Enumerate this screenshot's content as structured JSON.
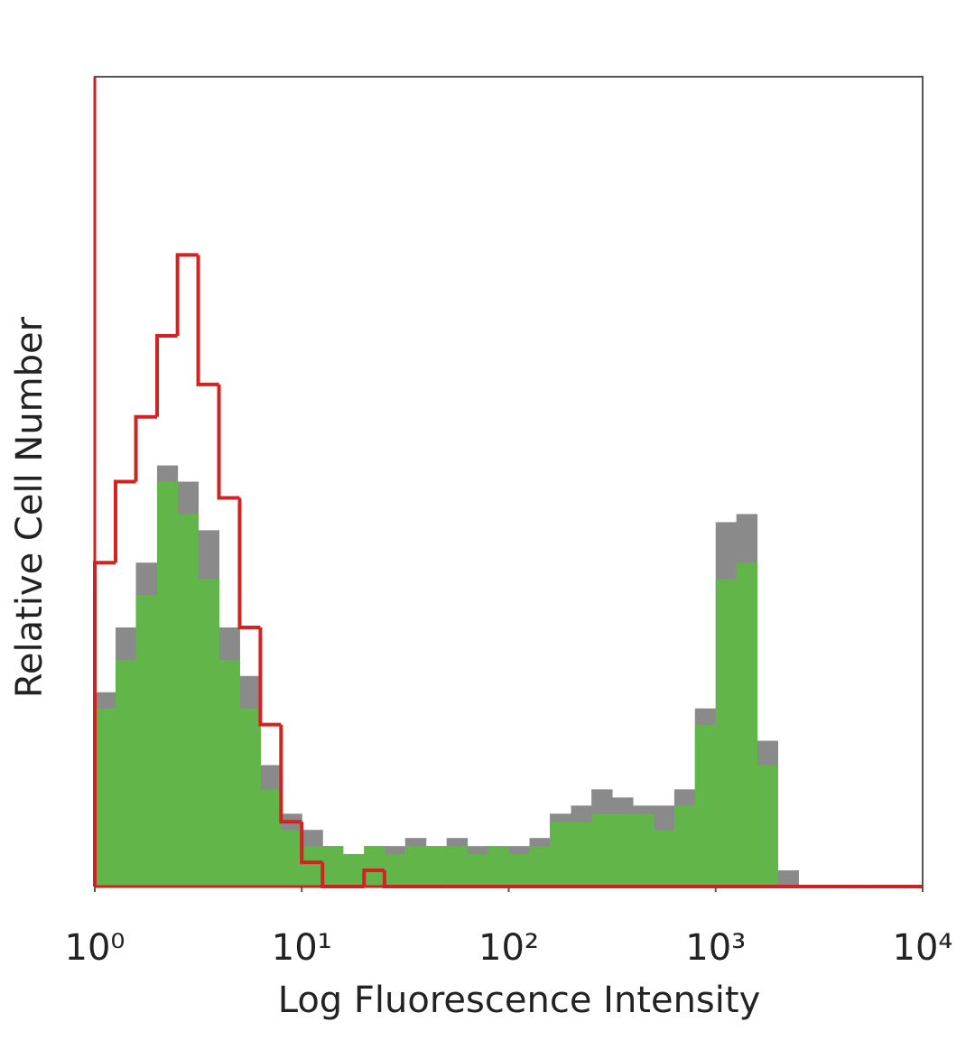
{
  "chart_data": {
    "type": "histogram",
    "x_label": "Log Fluorescence Intensity",
    "y_label": "Relative Cell Number",
    "x_log": true,
    "bins": [
      1,
      1.26,
      1.58,
      2,
      2.51,
      3.16,
      3.98,
      5.01,
      6.31,
      7.94,
      10,
      12.6,
      15.8,
      20,
      25.1,
      31.6,
      39.8,
      50.1,
      63.1,
      79.4,
      100,
      126,
      158,
      200,
      251,
      316,
      398,
      501,
      631,
      794,
      1000,
      1259,
      1585,
      1995,
      2512,
      3162,
      3981,
      5012,
      6310,
      7943,
      10000
    ],
    "series": [
      {
        "color": "#8a8a8a",
        "fill": true,
        "values": [
          24,
          32,
          40,
          52,
          50,
          44,
          32,
          26,
          15,
          9,
          7,
          5,
          4,
          5,
          5,
          6,
          5,
          6,
          5,
          5,
          5,
          6,
          9,
          10,
          12,
          11,
          10,
          10,
          12,
          22,
          45,
          46,
          18,
          2,
          0,
          0,
          0,
          0,
          0,
          0
        ]
      },
      {
        "color": "#62b548",
        "fill": true,
        "values": [
          22,
          28,
          36,
          50,
          46,
          38,
          28,
          22,
          12,
          7,
          5,
          5,
          4,
          5,
          4,
          5,
          5,
          5,
          4,
          5,
          4,
          5,
          8,
          8,
          9,
          9,
          9,
          7,
          10,
          20,
          38,
          40,
          15,
          0,
          0,
          0,
          0,
          0,
          0,
          0
        ]
      },
      {
        "color": "#d42222",
        "fill": false,
        "values": [
          40,
          50,
          58,
          68,
          78,
          62,
          48,
          32,
          20,
          8,
          3,
          0,
          0,
          2,
          0,
          0,
          0,
          0,
          0,
          0,
          0,
          0,
          0,
          0,
          0,
          0,
          0,
          0,
          0,
          0,
          0,
          0,
          0,
          0,
          0,
          0,
          0,
          0,
          0,
          0
        ]
      }
    ],
    "xlim": [
      1,
      10000
    ],
    "ylim": [
      0,
      100
    ],
    "xticks": [
      {
        "value": 1,
        "label": "10⁰"
      },
      {
        "value": 10,
        "label": "10¹"
      },
      {
        "value": 100,
        "label": "10²"
      },
      {
        "value": 1000,
        "label": "10³"
      },
      {
        "value": 10000,
        "label": "10⁴"
      }
    ]
  }
}
